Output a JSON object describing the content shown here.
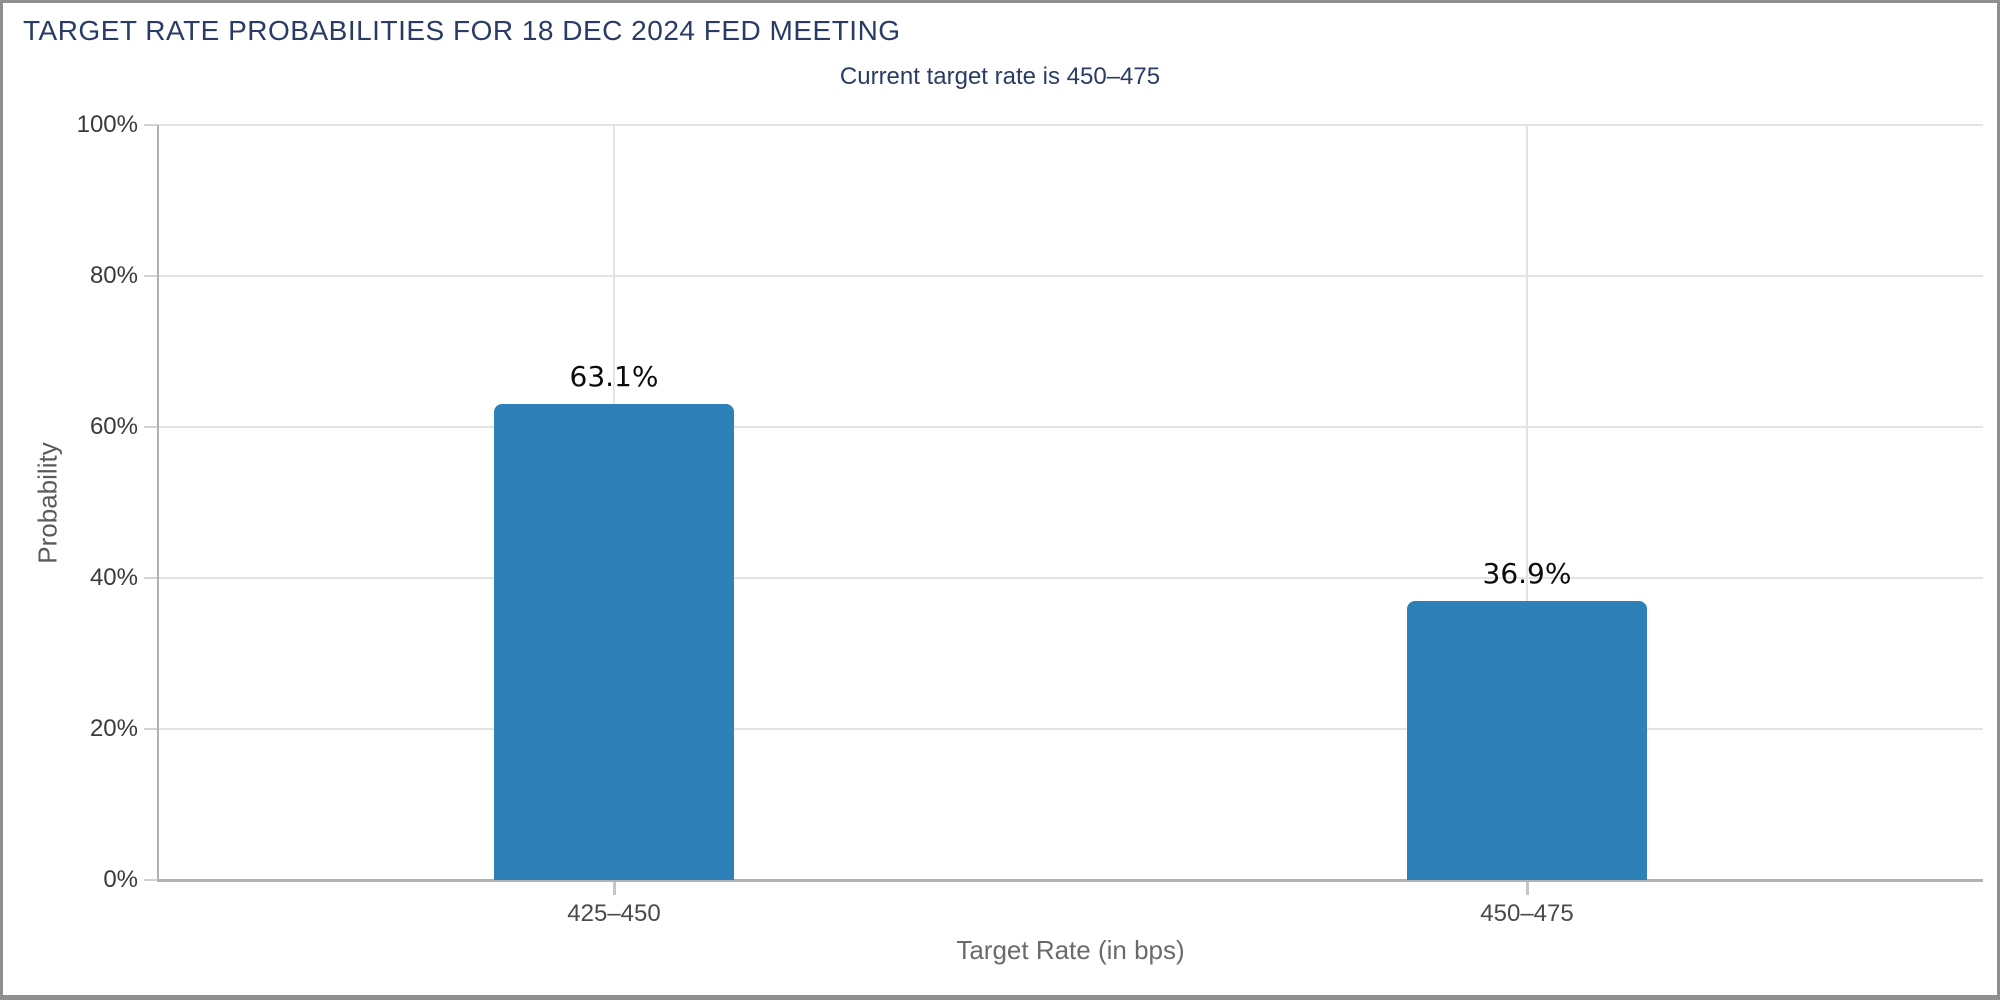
{
  "chart_data": {
    "type": "bar",
    "title": "TARGET RATE PROBABILITIES FOR 18 DEC 2024 FED MEETING",
    "subtitle": "Current target rate is 450–475",
    "categories": [
      "425–450",
      "450–475"
    ],
    "values": [
      63.1,
      36.9
    ],
    "value_labels": [
      "63.1%",
      "36.9%"
    ],
    "xlabel": "Target Rate (in bps)",
    "ylabel": "Probability",
    "ylim": [
      0,
      100
    ],
    "ytick_step": 20,
    "ytick_labels": [
      "0%",
      "20%",
      "40%",
      "60%",
      "80%",
      "100%"
    ],
    "grid": true,
    "legend_position": "none",
    "bar_color": "#2d80b8"
  },
  "colors": {
    "title_text": "#2a3b66",
    "grid_line": "#e3e3e3",
    "axis_line": "#b2b2b2",
    "border": "#8f8f8f",
    "background": "#ffffff"
  }
}
